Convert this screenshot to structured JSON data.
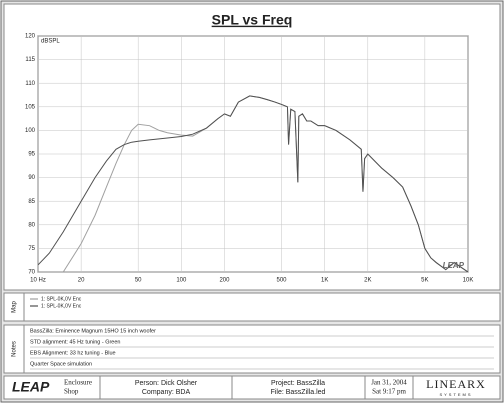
{
  "chart_data": {
    "type": "line",
    "title": "SPL vs Freq",
    "ylabel": "dBSPL",
    "watermark": "LEAP",
    "log_x": true,
    "grid": true,
    "xlim": [
      10,
      10000
    ],
    "ylim": [
      70,
      120
    ],
    "xticks": [
      {
        "value": 10,
        "label": "10 Hz"
      },
      20,
      50,
      100,
      200,
      500,
      {
        "value": 1000,
        "label": "1K"
      },
      {
        "value": 2000,
        "label": "2K"
      },
      {
        "value": 5000,
        "label": "5K"
      },
      {
        "value": 10000,
        "label": "10K"
      }
    ],
    "yticks": [
      70,
      75,
      80,
      85,
      90,
      95,
      100,
      105,
      110,
      115,
      120
    ],
    "x": [
      10,
      12,
      15,
      20,
      25,
      30,
      35,
      40,
      45,
      50,
      60,
      70,
      80,
      100,
      120,
      150,
      180,
      200,
      220,
      250,
      300,
      350,
      400,
      450,
      500,
      550,
      560,
      580,
      620,
      650,
      660,
      700,
      750,
      800,
      900,
      1000,
      1200,
      1500,
      1800,
      1850,
      1900,
      2000,
      2500,
      3000,
      3500,
      4000,
      4500,
      5000,
      5500,
      6000,
      7000,
      8000,
      10000
    ],
    "series": [
      {
        "name": "1: SPL-0K,0V Enc",
        "color": "#a0a0a0",
        "values": [
          null,
          null,
          70,
          76,
          82,
          88,
          93,
          97,
          100,
          101.3,
          101,
          100,
          99.5,
          99,
          98.8,
          100.5,
          102.5,
          103.5,
          103,
          106,
          107.3,
          107,
          106.5,
          106,
          105.5,
          105,
          97,
          104.5,
          104,
          89,
          103,
          103.5,
          102,
          102,
          101,
          101,
          100,
          98,
          96,
          87,
          94,
          95,
          92,
          90,
          88,
          84,
          80,
          75,
          73,
          72,
          70.5,
          72,
          70
        ]
      },
      {
        "name": "1: SPL-0K,0V Enc",
        "color": "#505050",
        "values": [
          71.5,
          74,
          78.5,
          85,
          90,
          93.5,
          96,
          97,
          97.5,
          97.7,
          98,
          98.2,
          98.4,
          98.7,
          99.2,
          100.5,
          102.5,
          103.5,
          103,
          106,
          107.3,
          107,
          106.5,
          106,
          105.5,
          105,
          97,
          104.5,
          104,
          89,
          103,
          103.5,
          102,
          102,
          101,
          101,
          100,
          98,
          96,
          87,
          94,
          95,
          92,
          90,
          88,
          84,
          80,
          75,
          73,
          72,
          70.5,
          72,
          70
        ]
      }
    ]
  },
  "map": {
    "label": "Map"
  },
  "notes": {
    "label": "Notes",
    "lines": [
      "BassZilla: Eminence Magnum 15HO 15 inch woofer",
      "STD alignment: 45 Hz tuning - Green",
      "EBS Alignment: 33 hz tuning - Blue",
      "Quarter Space simulation"
    ]
  },
  "footer": {
    "logo": "LEAP",
    "product": [
      "Enclosure",
      "Shop"
    ],
    "person": "Person: Dick Olsher",
    "company": "Company: BDA",
    "project": "Project: BassZilla",
    "file": "File: BassZilla.led",
    "date": "Jan 31, 2004",
    "time": "Sat 9:17 pm",
    "brand": "LINEARX",
    "brand_sub": "SYSTEMS"
  }
}
